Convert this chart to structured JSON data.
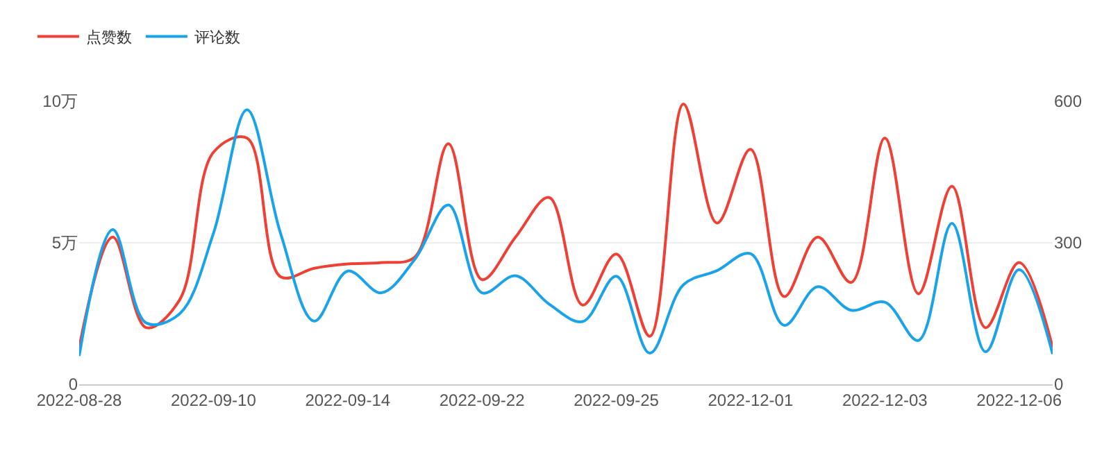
{
  "chart_data": {
    "type": "line",
    "categories": [
      "2022-08-28",
      null,
      null,
      null,
      "2022-09-10",
      null,
      null,
      null,
      "2022-09-14",
      null,
      null,
      null,
      "2022-09-22",
      null,
      null,
      null,
      "2022-09-25",
      null,
      null,
      null,
      "2022-12-01",
      null,
      null,
      null,
      "2022-12-03",
      null,
      null,
      null,
      "2022-12-06",
      null
    ],
    "series": [
      {
        "name": "点赞数",
        "color": "#ee4035",
        "values": [
          1.3,
          5.2,
          2.0,
          3.0,
          8.2,
          8.7,
          3.8,
          4.1,
          4.25,
          4.3,
          4.5,
          8.5,
          3.7,
          5.2,
          6.6,
          2.8,
          4.6,
          1.7,
          9.9,
          5.7,
          8.3,
          3.1,
          5.2,
          3.6,
          8.7,
          3.2,
          7.0,
          2.0,
          4.3,
          1.3
        ]
      },
      {
        "name": "评论数",
        "color": "#1aa3e8",
        "axis": "y2",
        "values": [
          60,
          328,
          130,
          150,
          320,
          582,
          320,
          134,
          240,
          194,
          265,
          380,
          194,
          230,
          170,
          133,
          229,
          66,
          211,
          241,
          277,
          125,
          207,
          157,
          174,
          93,
          341,
          69,
          243,
          64
        ]
      }
    ],
    "ylim": [
      0,
      10
    ],
    "yticks": [
      0,
      {
        "value": 5,
        "label": "5万"
      },
      {
        "value": 10,
        "label": "10万"
      }
    ],
    "y2lim": [
      0,
      600
    ],
    "y2ticks": [
      0,
      300,
      600
    ],
    "grid": "y",
    "legend": "top left",
    "marker": "none",
    "line_style": "solid"
  }
}
